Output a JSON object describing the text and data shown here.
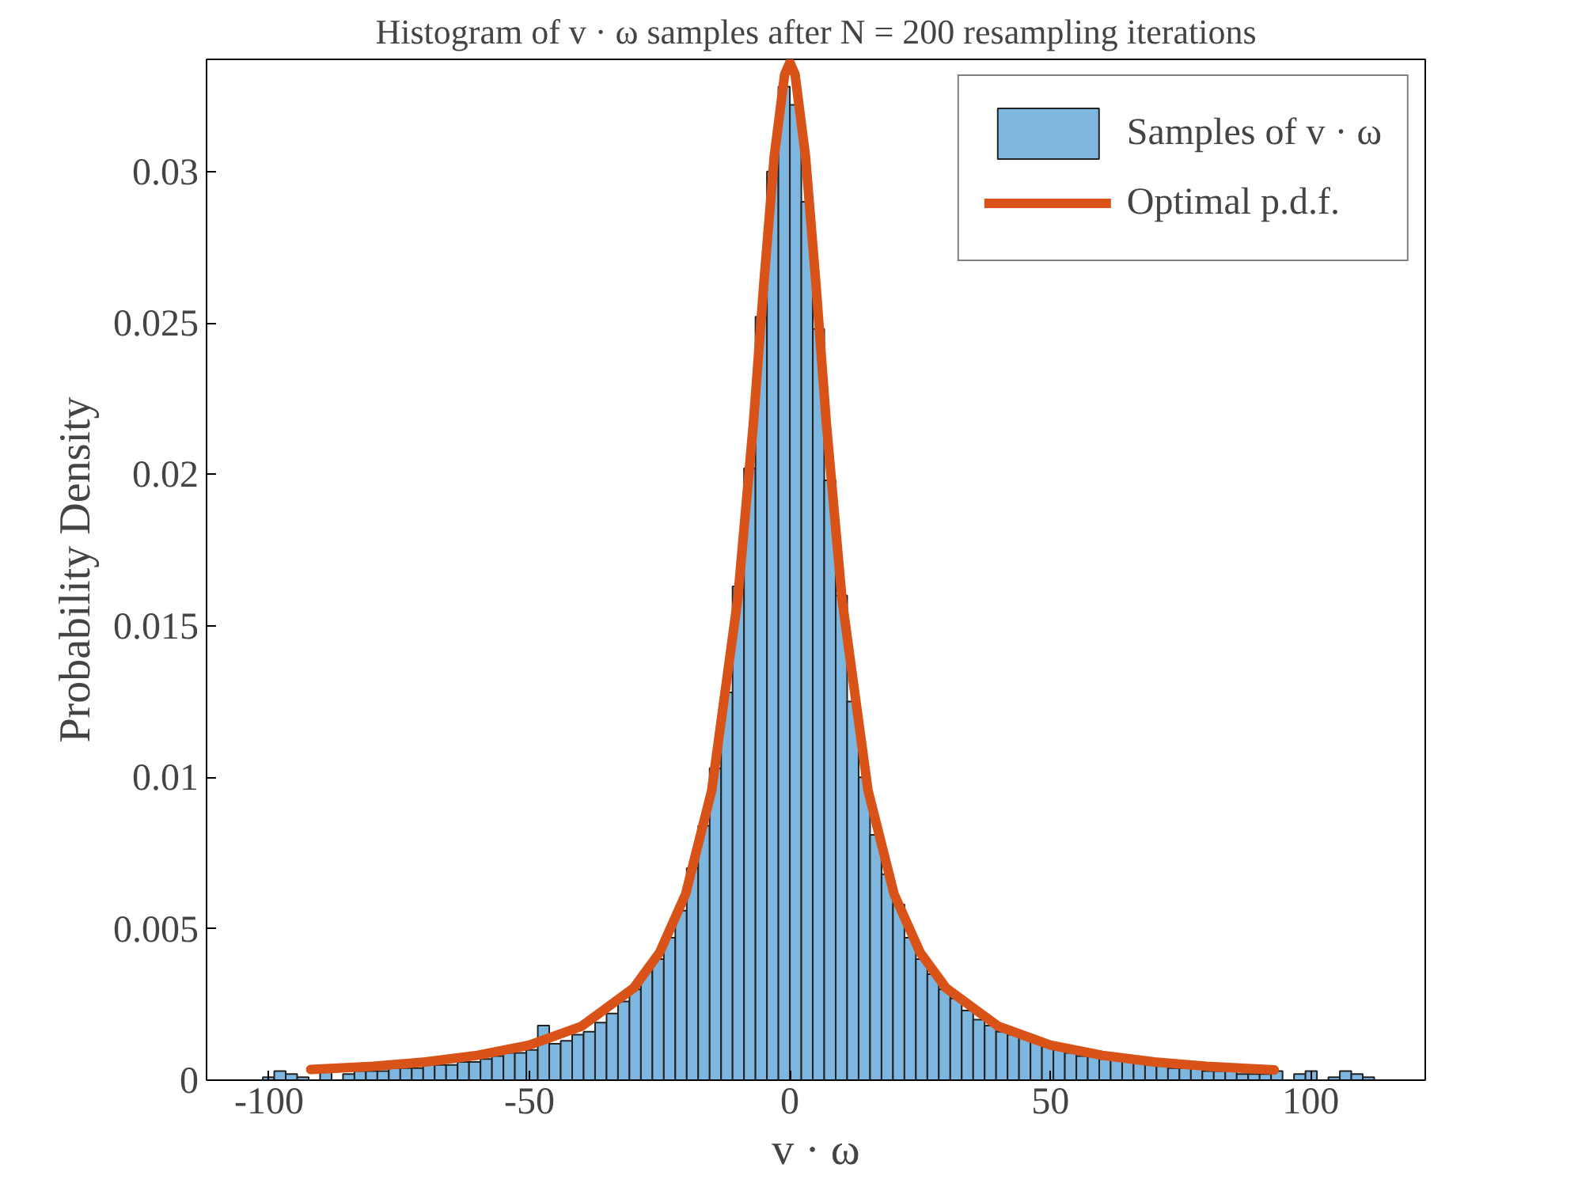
{
  "chart_data": {
    "type": "histogram",
    "title": "Histogram of v · ω samples after N = 200 resampling iterations",
    "xlabel": "v · ω",
    "ylabel": "Probability Density",
    "xlim": [
      -112,
      122
    ],
    "ylim": [
      0,
      0.0337
    ],
    "xticks": [
      -100,
      -50,
      0,
      50,
      100
    ],
    "yticks": [
      0,
      0.005,
      0.01,
      0.015,
      0.02,
      0.025,
      0.03
    ],
    "grid": false,
    "legend": "top right",
    "series": [
      {
        "name": "Samples of v · ω",
        "color": "#7db6df",
        "bins": [
          -101.2,
          -99.0,
          -96.8,
          -94.6,
          -92.4,
          -90.2,
          -88.0,
          -85.8,
          -83.6,
          -81.4,
          -79.2,
          -77.0,
          -74.8,
          -72.6,
          -70.4,
          -68.2,
          -66.0,
          -63.8,
          -61.6,
          -59.4,
          -57.2,
          -55.0,
          -52.8,
          -50.6,
          -48.4,
          -46.2,
          -44.0,
          -41.8,
          -39.6,
          -37.4,
          -35.2,
          -33.0,
          -30.8,
          -28.6,
          -26.4,
          -24.2,
          -22.0,
          -19.8,
          -17.6,
          -15.4,
          -13.2,
          -11.0,
          -8.8,
          -6.6,
          -4.4,
          -2.2,
          0,
          2.2,
          4.4,
          6.6,
          8.8,
          11.0,
          13.2,
          15.4,
          17.6,
          19.8,
          22.0,
          24.2,
          26.4,
          28.6,
          30.8,
          33.0,
          35.2,
          37.4,
          39.6,
          41.8,
          44.0,
          46.2,
          48.4,
          50.6,
          52.8,
          55.0,
          57.2,
          59.4,
          61.6,
          63.8,
          66.0,
          68.2,
          70.4,
          72.6,
          74.8,
          77.0,
          79.2,
          81.4,
          83.6,
          85.8,
          88.0,
          90.2,
          92.4,
          94.6,
          96.8,
          99.0,
          101.2,
          103.4,
          105.6,
          107.8,
          110.0,
          112.2
        ],
        "values": [
          0.0001,
          0.0003,
          0.0002,
          0.0001,
          null,
          0.0003,
          null,
          0.0002,
          0.0003,
          0.0003,
          0.0003,
          0.0004,
          0.0004,
          0.0004,
          0.0005,
          0.0005,
          0.0005,
          0.0006,
          0.0006,
          0.0007,
          0.0008,
          0.0009,
          0.0009,
          0.001,
          0.0018,
          0.0012,
          0.0013,
          0.0015,
          0.0016,
          0.0019,
          0.0022,
          0.0026,
          0.003,
          0.0036,
          0.004,
          0.0047,
          0.0056,
          0.007,
          0.0084,
          0.0103,
          0.0128,
          0.0163,
          0.0202,
          0.0252,
          0.03,
          0.0328,
          0.0322,
          0.029,
          0.0248,
          0.0198,
          0.016,
          0.0125,
          0.01,
          0.0081,
          0.0068,
          0.0058,
          0.0047,
          0.004,
          0.0035,
          0.003,
          0.0027,
          0.0023,
          0.002,
          0.0018,
          0.0016,
          0.0015,
          0.0014,
          0.0013,
          0.0011,
          0.001,
          0.0009,
          0.0008,
          0.0008,
          0.0007,
          0.0007,
          0.0006,
          0.0006,
          0.0005,
          0.0005,
          0.0004,
          0.0004,
          0.0004,
          0.0003,
          0.0003,
          0.0003,
          0.0002,
          0.0002,
          0.0002,
          0.0003,
          0,
          0.0002,
          0.0003,
          0,
          0.0001,
          0.0003,
          0.0002,
          0.0001
        ]
      },
      {
        "name": "Optimal p.d.f.",
        "type": "line",
        "color": "#d95319",
        "x": [
          -92,
          -80,
          -70,
          -60,
          -50,
          -40,
          -30,
          -25,
          -20,
          -15,
          -10,
          -7,
          -5,
          -3,
          -1,
          0,
          1,
          3,
          5,
          7,
          10,
          15,
          20,
          25,
          30,
          40,
          50,
          60,
          70,
          80,
          93
        ],
        "values": [
          0.00035,
          0.00046,
          0.0006,
          0.00082,
          0.00116,
          0.00178,
          0.00304,
          0.00422,
          0.00615,
          0.00957,
          0.0159,
          0.0217,
          0.0263,
          0.0305,
          0.0332,
          0.0336,
          0.0332,
          0.0305,
          0.0263,
          0.0217,
          0.0159,
          0.00957,
          0.00615,
          0.00422,
          0.00304,
          0.00178,
          0.00116,
          0.00082,
          0.0006,
          0.00046,
          0.00034
        ]
      }
    ]
  }
}
